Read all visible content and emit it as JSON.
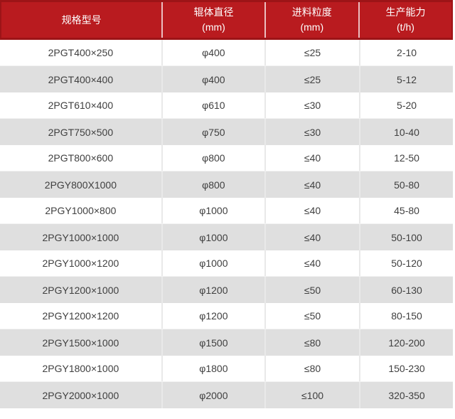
{
  "chart_data": {
    "type": "table",
    "title": "",
    "columns": [
      {
        "title": "规格型号",
        "subtitle": ""
      },
      {
        "title": "辊体直径",
        "subtitle": "(mm)"
      },
      {
        "title": "进料粒度",
        "subtitle": "(mm)"
      },
      {
        "title": "生产能力",
        "subtitle": "(t/h)"
      }
    ],
    "rows": [
      [
        "2PGT400×250",
        "φ400",
        "≤25",
        "2-10"
      ],
      [
        "2PGT400×400",
        "φ400",
        "≤25",
        "5-12"
      ],
      [
        "2PGT610×400",
        "φ610",
        "≤30",
        "5-20"
      ],
      [
        "2PGT750×500",
        "φ750",
        "≤30",
        "10-40"
      ],
      [
        "2PGT800×600",
        "φ800",
        "≤40",
        "12-50"
      ],
      [
        "2PGY800X1000",
        "φ800",
        "≤40",
        "50-80"
      ],
      [
        "2PGY1000×800",
        "φ1000",
        "≤40",
        "45-80"
      ],
      [
        "2PGY1000×1000",
        "φ1000",
        "≤40",
        "50-100"
      ],
      [
        "2PGY1000×1200",
        "φ1000",
        "≤40",
        "50-120"
      ],
      [
        "2PGY1200×1000",
        "φ1200",
        "≤50",
        "60-130"
      ],
      [
        "2PGY1200×1200",
        "φ1200",
        "≤50",
        "80-150"
      ],
      [
        "2PGY1500×1000",
        "φ1500",
        "≤80",
        "120-200"
      ],
      [
        "2PGY1800×1000",
        "φ1800",
        "≤80",
        "150-230"
      ],
      [
        "2PGY2000×1000",
        "φ2000",
        "≤100",
        "320-350"
      ]
    ],
    "layout": {
      "header_rows": 1,
      "alternating_rows": true,
      "text_align": "center"
    }
  },
  "colors": {
    "header_bg": "#b91b1f",
    "header_border": "#9d1417",
    "header_text": "#ffffff",
    "row_bg": "#ffffff",
    "row_alt_bg": "#dfdfdf",
    "cell_separator": "#e9e9e9",
    "body_text": "#404040"
  }
}
